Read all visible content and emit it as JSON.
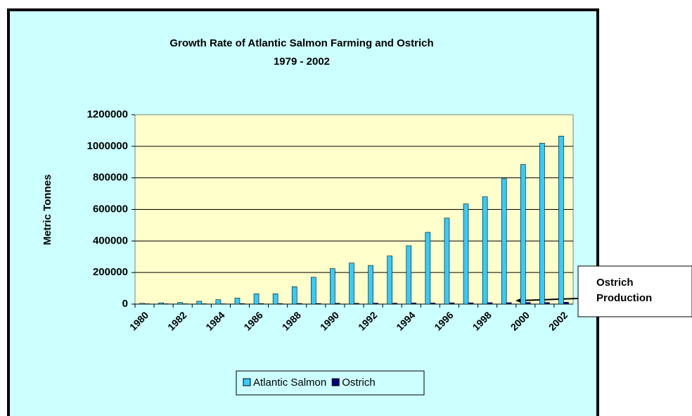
{
  "chart_data": {
    "type": "bar",
    "title": "Growth Rate of Atlantic Salmon Farming and Ostrich",
    "subtitle": "1979 - 2002",
    "y_label": "Metric Tonnes",
    "categories": [
      "1980",
      null,
      "1982",
      null,
      "1984",
      null,
      "1986",
      null,
      "1988",
      null,
      "1990",
      null,
      "1992",
      null,
      "1994",
      null,
      "1996",
      null,
      "1998",
      null,
      "2000",
      null,
      "2002"
    ],
    "series": [
      {
        "name": "Atlantic Salmon",
        "color": "#33ccff",
        "values": [
          5000,
          8000,
          10000,
          18000,
          28000,
          38000,
          65000,
          65000,
          110000,
          170000,
          225000,
          260000,
          245000,
          305000,
          370000,
          455000,
          545000,
          635000,
          680000,
          795000,
          885000,
          1020000,
          1065000
        ]
      },
      {
        "name": "Ostrich",
        "color": "#000080",
        "values": [
          2000,
          2000,
          2000,
          2000,
          2000,
          3000,
          3000,
          3000,
          4000,
          4000,
          5000,
          5000,
          6000,
          6000,
          7000,
          7000,
          8000,
          8000,
          9000,
          9000,
          10000,
          10000,
          12000
        ]
      }
    ],
    "ylim": [
      0,
      1200000
    ],
    "yticks": [
      0,
      200000,
      400000,
      600000,
      800000,
      1000000,
      1200000
    ],
    "grid": true,
    "legend": "bottom",
    "annotation": [
      "Ostrich",
      "Production"
    ]
  }
}
